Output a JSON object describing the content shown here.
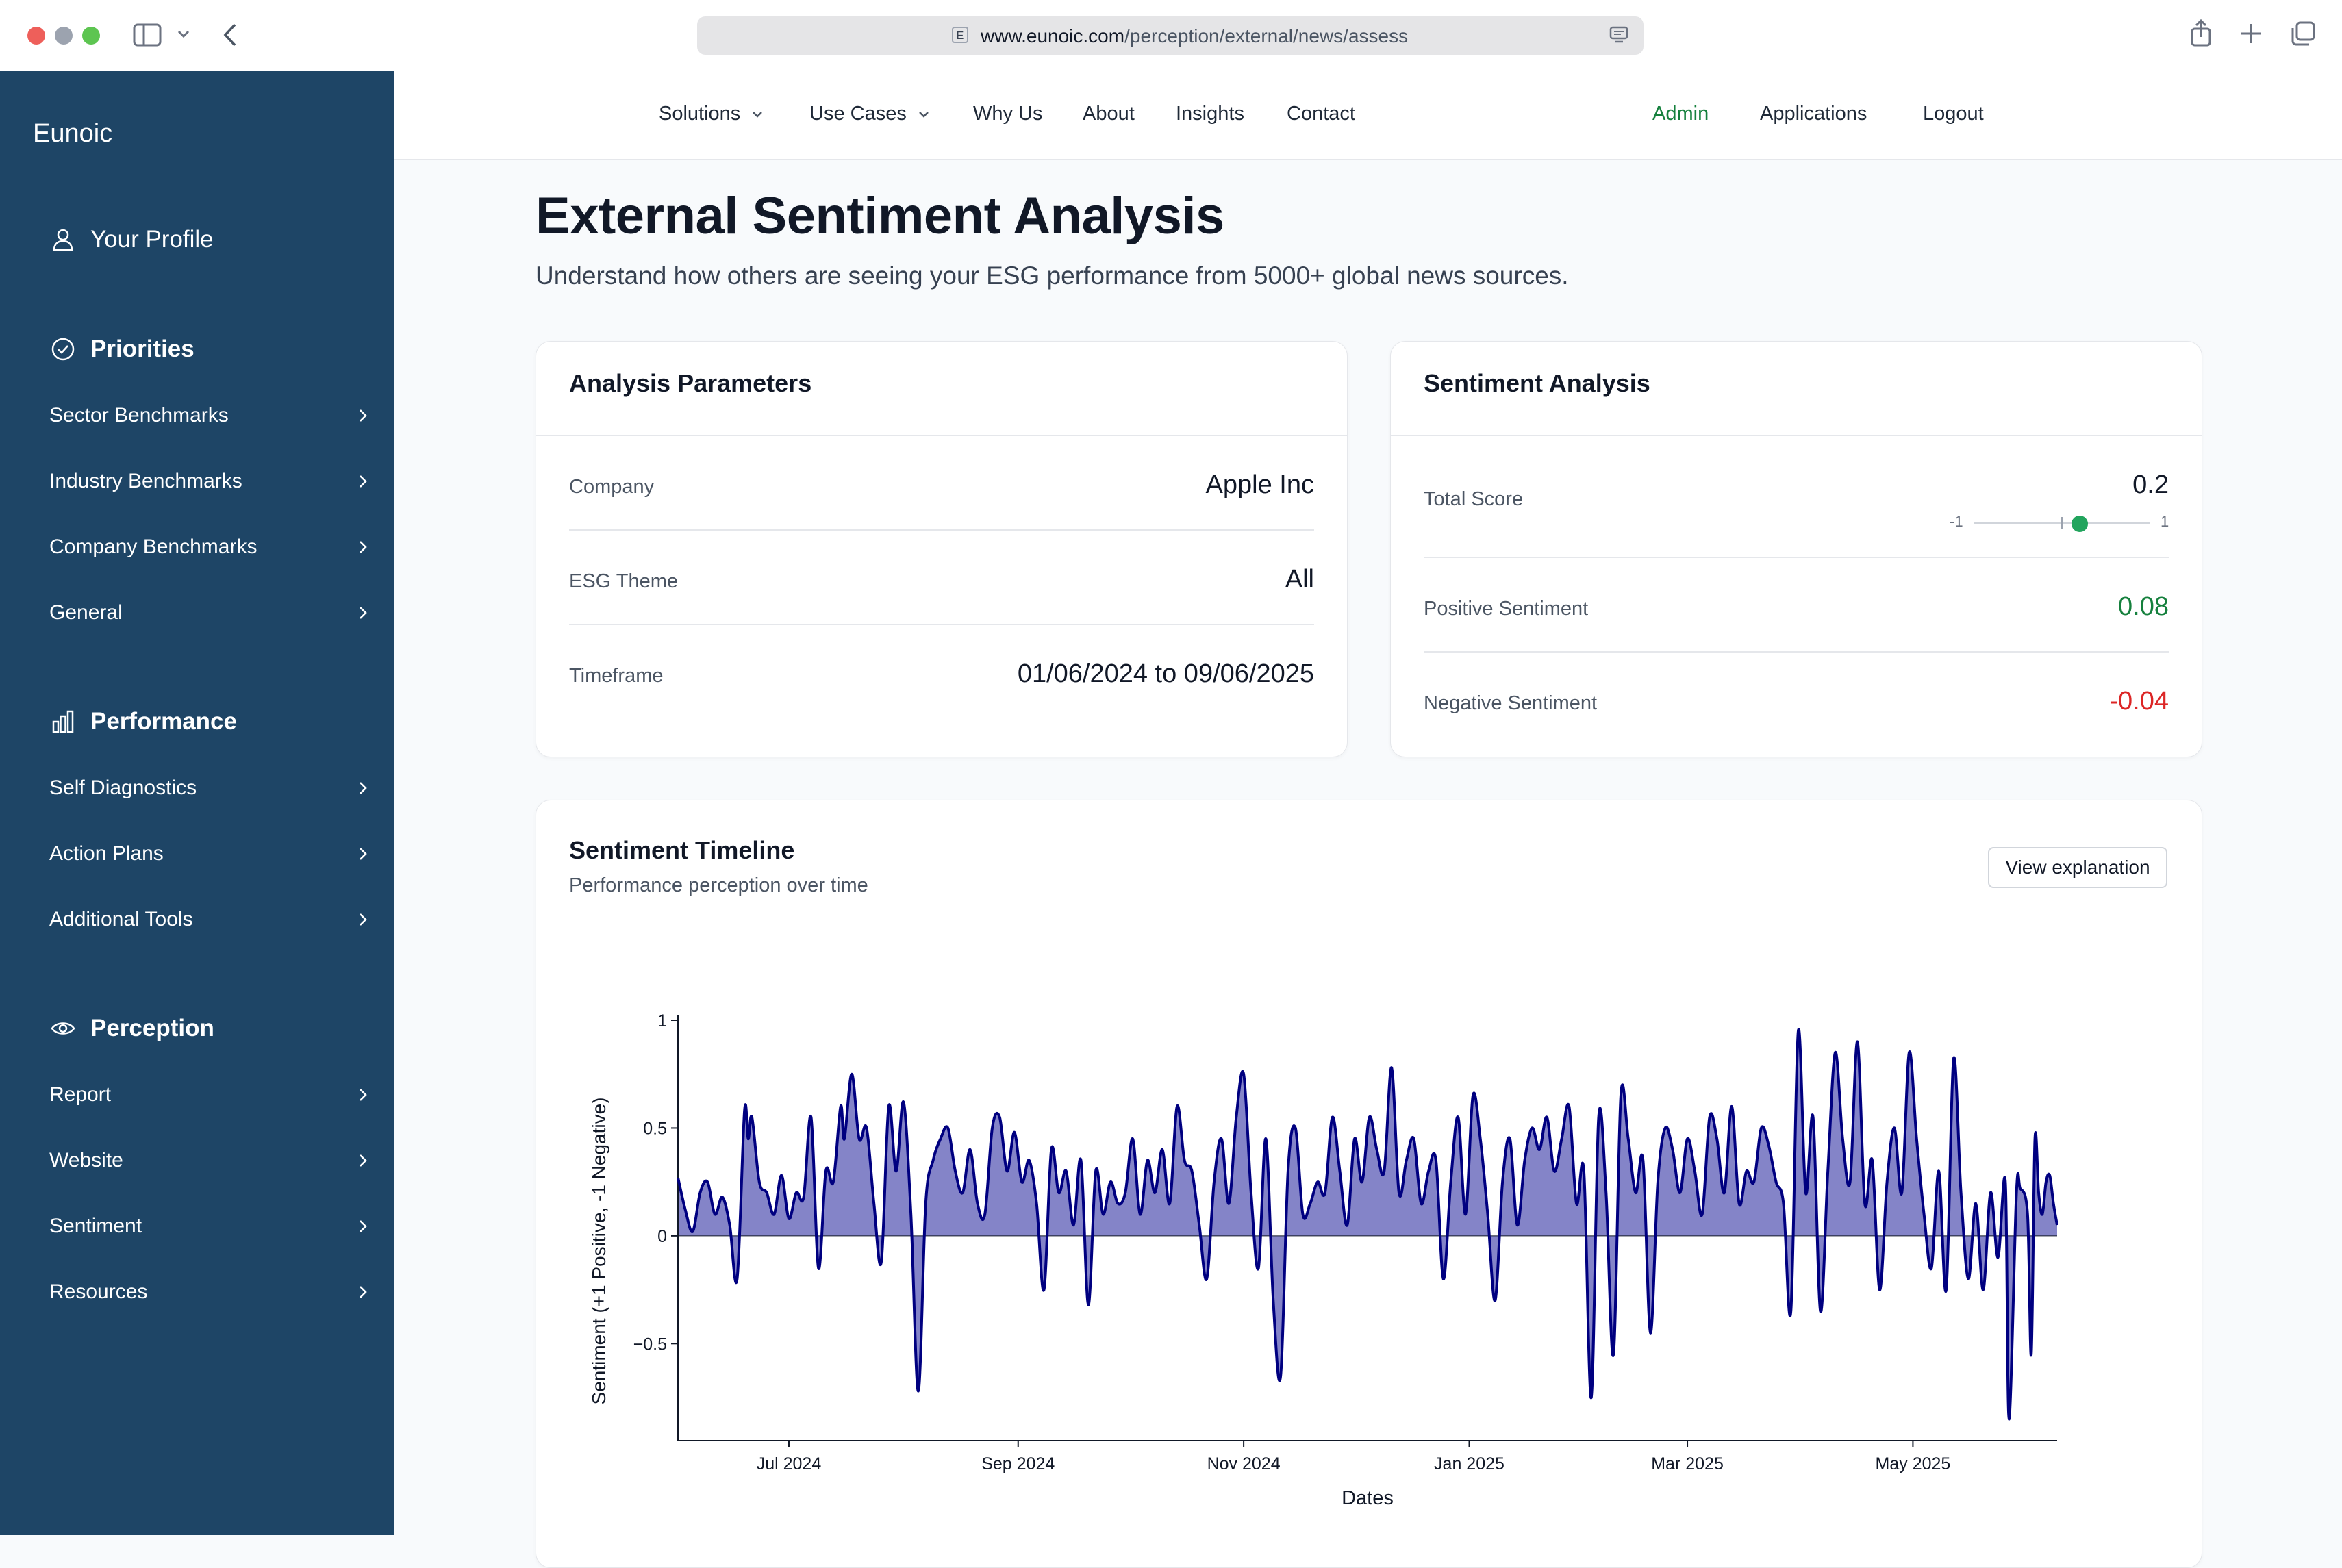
{
  "browser": {
    "url_domain": "www.eunoic.com",
    "url_path": "/perception/external/news/assess",
    "favicon_letter": "E"
  },
  "sidebar": {
    "brand": "Eunoic",
    "profile": "Your Profile",
    "priorities": {
      "title": "Priorities",
      "items": [
        "Sector Benchmarks",
        "Industry Benchmarks",
        "Company Benchmarks",
        "General"
      ]
    },
    "performance": {
      "title": "Performance",
      "items": [
        "Self Diagnostics",
        "Action Plans",
        "Additional Tools"
      ]
    },
    "perception": {
      "title": "Perception",
      "items": [
        "Report",
        "Website",
        "Sentiment",
        "Resources"
      ]
    }
  },
  "topnav": {
    "items": [
      "Solutions",
      "Use Cases",
      "Why Us",
      "About",
      "Insights",
      "Contact"
    ],
    "admin": "Admin",
    "applications": "Applications",
    "logout": "Logout"
  },
  "page": {
    "title": "External Sentiment Analysis",
    "subtitle": "Understand how others are seeing your ESG performance from 5000+ global news sources."
  },
  "parameters": {
    "heading": "Analysis Parameters",
    "company_label": "Company",
    "company_value": "Apple Inc",
    "theme_label": "ESG Theme",
    "theme_value": "All",
    "timeframe_label": "Timeframe",
    "timeframe_value": "01/06/2024 to 09/06/2025"
  },
  "sentiment": {
    "heading": "Sentiment Analysis",
    "total_label": "Total Score",
    "total_value": "0.2",
    "total_numeric": 0.2,
    "slider_min": "-1",
    "slider_max": "1",
    "positive_label": "Positive Sentiment",
    "positive_value": "0.08",
    "negative_label": "Negative Sentiment",
    "negative_value": "-0.04",
    "colors": {
      "positive": "#15803d",
      "negative": "#dc2626",
      "thumb": "#22a45d"
    }
  },
  "timeline": {
    "heading": "Sentiment Timeline",
    "subheading": "Performance perception over time",
    "button": "View explanation"
  },
  "chart_data": {
    "type": "area",
    "title": "",
    "xlabel": "Dates",
    "ylabel": "Sentiment (+1 Positive, -1 Negative)",
    "ylim": [
      -0.95,
      1.0
    ],
    "yticks": [
      1,
      0.5,
      0,
      -0.5
    ],
    "ytick_labels": [
      "1",
      "0.5",
      "0",
      "−0.5"
    ],
    "xlim": [
      "2024-06-01",
      "2025-06-09"
    ],
    "xticks": [
      "2024-07-01",
      "2024-09-01",
      "2024-11-01",
      "2025-01-01",
      "2025-03-01",
      "2025-05-01"
    ],
    "xtick_labels": [
      "Jul 2024",
      "Sep 2024",
      "Nov 2024",
      "Jan 2025",
      "Mar 2025",
      "May 2025"
    ],
    "line_color": "#000080",
    "fill_color": "#8484c8",
    "series": [
      {
        "points": [
          [
            "2024-06-01",
            0.27
          ],
          [
            "2024-06-03",
            0.12
          ],
          [
            "2024-06-05",
            0.02
          ],
          [
            "2024-06-07",
            0.2
          ],
          [
            "2024-06-09",
            0.25
          ],
          [
            "2024-06-11",
            0.1
          ],
          [
            "2024-06-13",
            0.18
          ],
          [
            "2024-06-15",
            0.05
          ],
          [
            "2024-06-17",
            -0.2
          ],
          [
            "2024-06-19",
            0.58
          ],
          [
            "2024-06-20",
            0.45
          ],
          [
            "2024-06-21",
            0.55
          ],
          [
            "2024-06-23",
            0.25
          ],
          [
            "2024-06-25",
            0.2
          ],
          [
            "2024-06-27",
            0.1
          ],
          [
            "2024-06-29",
            0.28
          ],
          [
            "2024-07-01",
            0.08
          ],
          [
            "2024-07-03",
            0.2
          ],
          [
            "2024-07-05",
            0.18
          ],
          [
            "2024-07-07",
            0.55
          ],
          [
            "2024-07-09",
            -0.15
          ],
          [
            "2024-07-11",
            0.3
          ],
          [
            "2024-07-13",
            0.25
          ],
          [
            "2024-07-15",
            0.6
          ],
          [
            "2024-07-16",
            0.45
          ],
          [
            "2024-07-18",
            0.75
          ],
          [
            "2024-07-20",
            0.45
          ],
          [
            "2024-07-22",
            0.5
          ],
          [
            "2024-07-24",
            0.15
          ],
          [
            "2024-07-26",
            -0.12
          ],
          [
            "2024-07-28",
            0.6
          ],
          [
            "2024-07-30",
            0.3
          ],
          [
            "2024-08-01",
            0.62
          ],
          [
            "2024-08-03",
            0.1
          ],
          [
            "2024-08-05",
            -0.72
          ],
          [
            "2024-08-07",
            0.15
          ],
          [
            "2024-08-09",
            0.35
          ],
          [
            "2024-08-11",
            0.45
          ],
          [
            "2024-08-13",
            0.5
          ],
          [
            "2024-08-15",
            0.3
          ],
          [
            "2024-08-17",
            0.2
          ],
          [
            "2024-08-19",
            0.4
          ],
          [
            "2024-08-21",
            0.15
          ],
          [
            "2024-08-23",
            0.1
          ],
          [
            "2024-08-25",
            0.5
          ],
          [
            "2024-08-27",
            0.55
          ],
          [
            "2024-08-29",
            0.3
          ],
          [
            "2024-08-31",
            0.48
          ],
          [
            "2024-09-02",
            0.25
          ],
          [
            "2024-09-04",
            0.35
          ],
          [
            "2024-09-06",
            0.15
          ],
          [
            "2024-09-08",
            -0.25
          ],
          [
            "2024-09-10",
            0.4
          ],
          [
            "2024-09-12",
            0.2
          ],
          [
            "2024-09-14",
            0.3
          ],
          [
            "2024-09-16",
            0.05
          ],
          [
            "2024-09-18",
            0.35
          ],
          [
            "2024-09-20",
            -0.32
          ],
          [
            "2024-09-22",
            0.3
          ],
          [
            "2024-09-24",
            0.1
          ],
          [
            "2024-09-26",
            0.25
          ],
          [
            "2024-09-28",
            0.15
          ],
          [
            "2024-09-30",
            0.2
          ],
          [
            "2024-10-02",
            0.45
          ],
          [
            "2024-10-04",
            0.1
          ],
          [
            "2024-10-06",
            0.35
          ],
          [
            "2024-10-08",
            0.2
          ],
          [
            "2024-10-10",
            0.4
          ],
          [
            "2024-10-12",
            0.15
          ],
          [
            "2024-10-14",
            0.6
          ],
          [
            "2024-10-16",
            0.35
          ],
          [
            "2024-10-18",
            0.3
          ],
          [
            "2024-10-20",
            0.05
          ],
          [
            "2024-10-22",
            -0.2
          ],
          [
            "2024-10-24",
            0.25
          ],
          [
            "2024-10-26",
            0.45
          ],
          [
            "2024-10-28",
            0.15
          ],
          [
            "2024-10-30",
            0.55
          ],
          [
            "2024-11-01",
            0.75
          ],
          [
            "2024-11-03",
            0.2
          ],
          [
            "2024-11-05",
            -0.15
          ],
          [
            "2024-11-07",
            0.45
          ],
          [
            "2024-11-09",
            -0.3
          ],
          [
            "2024-11-11",
            -0.65
          ],
          [
            "2024-11-13",
            0.3
          ],
          [
            "2024-11-15",
            0.5
          ],
          [
            "2024-11-17",
            0.1
          ],
          [
            "2024-11-19",
            0.15
          ],
          [
            "2024-11-21",
            0.25
          ],
          [
            "2024-11-23",
            0.2
          ],
          [
            "2024-11-25",
            0.55
          ],
          [
            "2024-11-27",
            0.3
          ],
          [
            "2024-11-29",
            0.05
          ],
          [
            "2024-12-01",
            0.45
          ],
          [
            "2024-12-03",
            0.25
          ],
          [
            "2024-12-05",
            0.55
          ],
          [
            "2024-12-07",
            0.4
          ],
          [
            "2024-12-09",
            0.3
          ],
          [
            "2024-12-11",
            0.78
          ],
          [
            "2024-12-13",
            0.2
          ],
          [
            "2024-12-15",
            0.35
          ],
          [
            "2024-12-17",
            0.45
          ],
          [
            "2024-12-19",
            0.15
          ],
          [
            "2024-12-21",
            0.3
          ],
          [
            "2024-12-23",
            0.35
          ],
          [
            "2024-12-25",
            -0.2
          ],
          [
            "2024-12-27",
            0.25
          ],
          [
            "2024-12-29",
            0.55
          ],
          [
            "2024-12-31",
            0.1
          ],
          [
            "2025-01-02",
            0.65
          ],
          [
            "2025-01-04",
            0.45
          ],
          [
            "2025-01-06",
            0.1
          ],
          [
            "2025-01-08",
            -0.3
          ],
          [
            "2025-01-10",
            0.25
          ],
          [
            "2025-01-12",
            0.45
          ],
          [
            "2025-01-14",
            0.05
          ],
          [
            "2025-01-16",
            0.35
          ],
          [
            "2025-01-18",
            0.5
          ],
          [
            "2025-01-20",
            0.4
          ],
          [
            "2025-01-22",
            0.55
          ],
          [
            "2025-01-24",
            0.3
          ],
          [
            "2025-01-26",
            0.45
          ],
          [
            "2025-01-28",
            0.6
          ],
          [
            "2025-01-30",
            0.15
          ],
          [
            "2025-02-01",
            0.3
          ],
          [
            "2025-02-03",
            -0.75
          ],
          [
            "2025-02-05",
            0.55
          ],
          [
            "2025-02-07",
            0.2
          ],
          [
            "2025-02-09",
            -0.55
          ],
          [
            "2025-02-11",
            0.65
          ],
          [
            "2025-02-13",
            0.45
          ],
          [
            "2025-02-15",
            0.2
          ],
          [
            "2025-02-17",
            0.35
          ],
          [
            "2025-02-19",
            -0.45
          ],
          [
            "2025-02-21",
            0.25
          ],
          [
            "2025-02-23",
            0.5
          ],
          [
            "2025-02-25",
            0.4
          ],
          [
            "2025-02-27",
            0.2
          ],
          [
            "2025-03-01",
            0.45
          ],
          [
            "2025-03-03",
            0.3
          ],
          [
            "2025-03-05",
            0.1
          ],
          [
            "2025-03-07",
            0.55
          ],
          [
            "2025-03-09",
            0.45
          ],
          [
            "2025-03-11",
            0.2
          ],
          [
            "2025-03-13",
            0.6
          ],
          [
            "2025-03-15",
            0.15
          ],
          [
            "2025-03-17",
            0.3
          ],
          [
            "2025-03-19",
            0.25
          ],
          [
            "2025-03-21",
            0.5
          ],
          [
            "2025-03-23",
            0.42
          ],
          [
            "2025-03-25",
            0.25
          ],
          [
            "2025-03-27",
            0.15
          ],
          [
            "2025-03-29",
            -0.35
          ],
          [
            "2025-03-31",
            0.95
          ],
          [
            "2025-04-02",
            0.2
          ],
          [
            "2025-04-04",
            0.55
          ],
          [
            "2025-04-06",
            -0.35
          ],
          [
            "2025-04-08",
            0.3
          ],
          [
            "2025-04-10",
            0.85
          ],
          [
            "2025-04-12",
            0.45
          ],
          [
            "2025-04-14",
            0.25
          ],
          [
            "2025-04-16",
            0.9
          ],
          [
            "2025-04-18",
            0.15
          ],
          [
            "2025-04-20",
            0.35
          ],
          [
            "2025-04-22",
            -0.25
          ],
          [
            "2025-04-24",
            0.25
          ],
          [
            "2025-04-26",
            0.5
          ],
          [
            "2025-04-28",
            0.2
          ],
          [
            "2025-04-30",
            0.85
          ],
          [
            "2025-05-02",
            0.45
          ],
          [
            "2025-05-04",
            0.1
          ],
          [
            "2025-05-06",
            -0.15
          ],
          [
            "2025-05-08",
            0.3
          ],
          [
            "2025-05-10",
            -0.25
          ],
          [
            "2025-05-12",
            0.82
          ],
          [
            "2025-05-14",
            0.2
          ],
          [
            "2025-05-16",
            -0.2
          ],
          [
            "2025-05-18",
            0.15
          ],
          [
            "2025-05-20",
            -0.25
          ],
          [
            "2025-05-22",
            0.2
          ],
          [
            "2025-05-24",
            -0.1
          ],
          [
            "2025-05-26",
            0.25
          ],
          [
            "2025-05-27",
            -0.85
          ],
          [
            "2025-05-29",
            0.2
          ],
          [
            "2025-05-30",
            0.22
          ],
          [
            "2025-06-01",
            0.1
          ],
          [
            "2025-06-02",
            -0.55
          ],
          [
            "2025-06-03",
            0.45
          ],
          [
            "2025-06-04",
            0.2
          ],
          [
            "2025-06-05",
            0.1
          ],
          [
            "2025-06-06",
            0.25
          ],
          [
            "2025-06-07",
            0.28
          ],
          [
            "2025-06-08",
            0.15
          ],
          [
            "2025-06-09",
            0.05
          ]
        ]
      }
    ]
  }
}
